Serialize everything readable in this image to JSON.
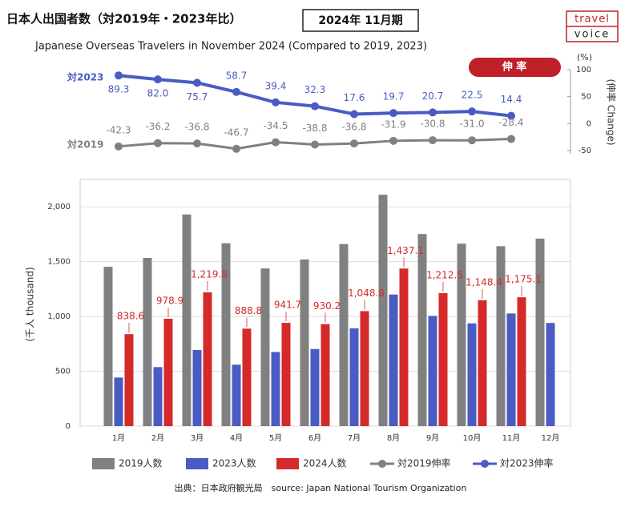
{
  "title": "日本人出国者数（対2019年・2023年比）",
  "period": "2024年 11月期",
  "subtitle": "Japanese Overseas Travelers in November 2024 (Compared to 2019, 2023)",
  "logo": {
    "top": "travel",
    "bottom": "voice"
  },
  "source": "出典：日本政府観光局　source: Japan National Tourism Organization",
  "chart_data": [
    {
      "type": "line",
      "badge": "伸 率",
      "unit_label": "(%)",
      "ylabel": "(伸率 Change)",
      "ylim": [
        -50,
        100
      ],
      "yticks": [
        -50,
        0,
        50,
        100
      ],
      "series": [
        {
          "name": "対2023伸率",
          "label": "対2023",
          "color": "#4a5bc4",
          "values": [
            89.3,
            82.0,
            75.7,
            58.7,
            39.4,
            32.3,
            17.6,
            19.7,
            20.7,
            22.5,
            14.4
          ],
          "value_labels": [
            "89.3",
            "82.0",
            "75.7",
            "58.7",
            "39.4",
            "32.3",
            "17.6",
            "19.7",
            "20.7",
            "22.5",
            "14.4"
          ]
        },
        {
          "name": "対2019伸率",
          "label": "対2019",
          "color": "#808080",
          "values": [
            -42.3,
            -36.2,
            -36.8,
            -46.7,
            -34.5,
            -38.8,
            -36.8,
            -31.9,
            -30.8,
            -31.0,
            -28.4
          ],
          "value_labels": [
            "-42.3",
            "-36.2",
            "-36.8",
            "-46.7",
            "-34.5",
            "-38.8",
            "-36.8",
            "-31.9",
            "-30.8",
            "-31.0",
            "-28.4"
          ]
        }
      ]
    },
    {
      "type": "bar",
      "ylabel": "(千人 thousand)",
      "categories": [
        "1月",
        "2月",
        "3月",
        "4月",
        "5月",
        "6月",
        "7月",
        "8月",
        "9月",
        "10月",
        "11月",
        "12月"
      ],
      "ylim": [
        0,
        2250
      ],
      "yticks": [
        0,
        500,
        {
          "value": 1000,
          "label": "1,000"
        },
        {
          "value": 1500,
          "label": "1,500"
        },
        {
          "value": 2000,
          "label": "2,000"
        }
      ],
      "grid": true,
      "series": [
        {
          "name": "2019人数",
          "color": "#808080",
          "values": [
            1453,
            1534,
            1930,
            1668,
            1438,
            1520,
            1660,
            2110,
            1752,
            1664,
            1641,
            1710
          ]
        },
        {
          "name": "2023人数",
          "color": "#4a5bc4",
          "values": [
            443,
            538,
            694,
            560,
            676,
            703,
            892,
            1200,
            1005,
            937,
            1027,
            941
          ]
        },
        {
          "name": "2024人数",
          "color": "#d42a2a",
          "values": [
            838.6,
            978.9,
            1219.8,
            888.8,
            941.7,
            930.2,
            1048.8,
            1437.1,
            1212.5,
            1148.4,
            1175.1,
            null
          ],
          "value_labels": [
            "838.6",
            "978.9",
            "1,219.8",
            "888.8",
            "941.7",
            "930.2",
            "1,048.8",
            "1,437.1",
            "1,212.5",
            "1,148.4",
            "1,175.1",
            null
          ]
        }
      ]
    }
  ]
}
